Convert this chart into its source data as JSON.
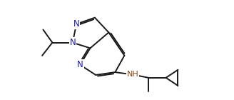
{
  "bg_color": "#ffffff",
  "bond_color": "#1a1a1a",
  "n_color": "#1a1aaa",
  "nh_color": "#8b4513",
  "line_width": 1.4,
  "font_size": 8.5,
  "fig_width": 3.28,
  "fig_height": 1.4,
  "dpi": 100,
  "xlim": [
    0.0,
    10.5
  ],
  "ylim": [
    -0.5,
    4.8
  ]
}
